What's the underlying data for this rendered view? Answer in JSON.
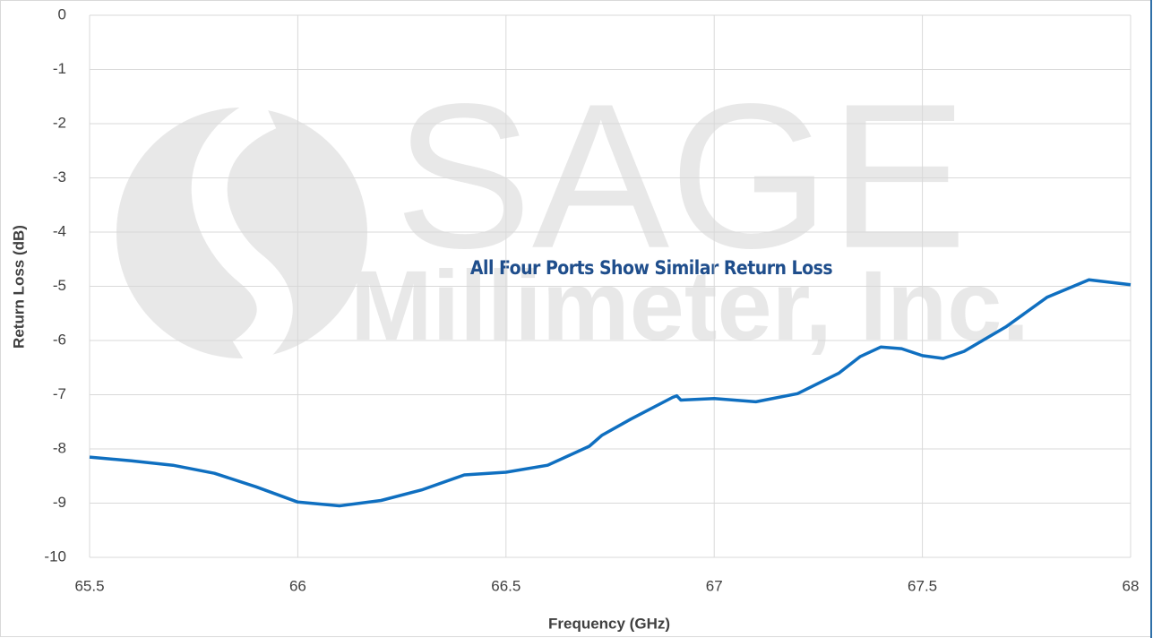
{
  "chart_data": {
    "type": "line",
    "xlabel": "Frequency (GHz)",
    "ylabel": "Return Loss (dB)",
    "annotation": "All Four Ports Show Similar Return Loss",
    "watermark": [
      "SAGE",
      "Millimeter, Inc."
    ],
    "x": [
      65.5,
      65.6,
      65.7,
      65.8,
      65.9,
      66.0,
      66.1,
      66.2,
      66.3,
      66.4,
      66.5,
      66.6,
      66.7,
      66.73,
      66.8,
      66.9,
      66.91,
      66.92,
      67.0,
      67.1,
      67.2,
      67.3,
      67.35,
      67.4,
      67.45,
      67.5,
      67.55,
      67.6,
      67.7,
      67.8,
      67.9,
      68.0
    ],
    "series": [
      {
        "name": "Return Loss",
        "color": "#0f6fc0",
        "values": [
          -8.15,
          -8.22,
          -8.3,
          -8.45,
          -8.7,
          -8.98,
          -9.05,
          -8.95,
          -8.75,
          -8.48,
          -8.43,
          -8.3,
          -7.95,
          -7.75,
          -7.45,
          -7.05,
          -7.02,
          -7.1,
          -7.07,
          -7.13,
          -6.98,
          -6.6,
          -6.3,
          -6.12,
          -6.15,
          -6.28,
          -6.33,
          -6.2,
          -5.75,
          -5.2,
          -4.88,
          -4.97
        ]
      }
    ],
    "xlim": [
      65.5,
      68
    ],
    "xticks": [
      65.5,
      66,
      66.5,
      67,
      67.5,
      68
    ],
    "ylim": [
      -10,
      0
    ],
    "yticks": [
      0,
      -1,
      -2,
      -3,
      -4,
      -5,
      -6,
      -7,
      -8,
      -9,
      -10
    ],
    "grid": true
  }
}
